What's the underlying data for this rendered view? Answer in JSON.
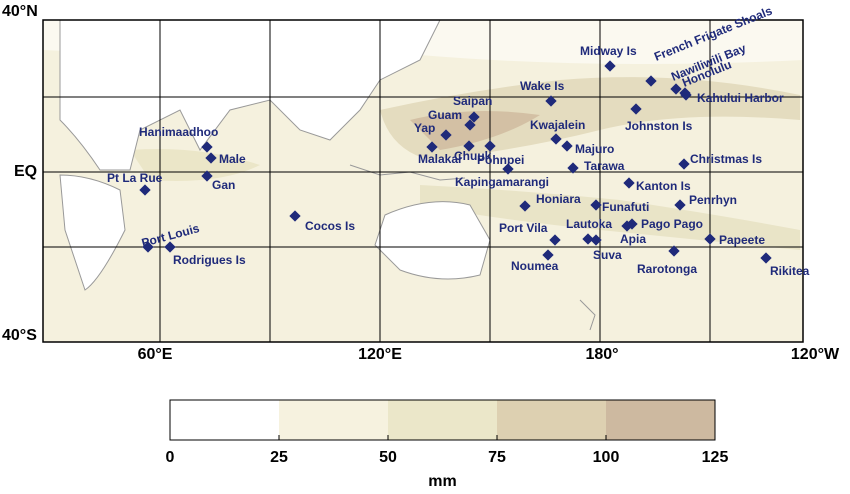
{
  "axes": {
    "y_labels": [
      "40°N",
      "EQ",
      "40°S"
    ],
    "x_labels": [
      "60°E",
      "120°E",
      "180°",
      "120°W"
    ]
  },
  "stations": [
    "Midway Is",
    "French Frigate Shoals",
    "Nawiliwili Bay",
    "Honolulu",
    "Kahului Harbor",
    "Wake Is",
    "Johnston Is",
    "Saipan",
    "Guam",
    "Yap",
    "Kwajalein",
    "Malakal",
    "Chuuk",
    "Pohnpei",
    "Majuro",
    "Christmas Is",
    "Tarawa",
    "Hanimaadhoo",
    "Male",
    "Kapingamarangi",
    "Gan",
    "Pt La Rue",
    "Kanton Is",
    "Honiara",
    "Funafuti",
    "Penrhyn",
    "Cocos Is",
    "Port Vila",
    "Lautoka",
    "Pago Pago",
    "Apia",
    "Suva",
    "Port Louis",
    "Rodrigues Is",
    "Rarotonga",
    "Papeete",
    "Noumea",
    "Rikitea"
  ],
  "colorbar": {
    "ticks": [
      0,
      25,
      50,
      75,
      100,
      125
    ],
    "colors": [
      "#ffffff",
      "#f6f2df",
      "#ebe7c9",
      "#ddd0b1",
      "#cdb9a0"
    ],
    "unit": "mm"
  }
}
